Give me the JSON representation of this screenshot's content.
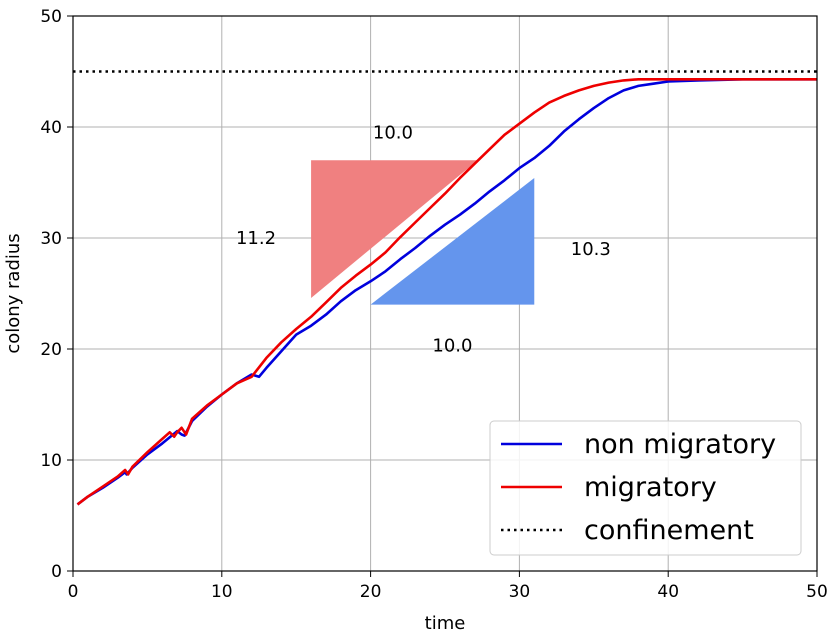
{
  "chart_data": {
    "type": "line",
    "title": "",
    "xlabel": "time",
    "ylabel": "colony radius",
    "xlim": [
      0,
      50
    ],
    "ylim": [
      0,
      50
    ],
    "xticks": [
      "0",
      "10",
      "20",
      "30",
      "40",
      "50"
    ],
    "yticks": [
      "0",
      "10",
      "20",
      "30",
      "40",
      "50"
    ],
    "grid": true,
    "legend_position": "bottom-right",
    "series": [
      {
        "name": "non migratory",
        "color": "#0000dd",
        "x": [
          0.3,
          1,
          2,
          3,
          3.5,
          3.6,
          4,
          5,
          6,
          7,
          7.3,
          7.5,
          8,
          9,
          10,
          11,
          12,
          12.5,
          13,
          14,
          15,
          16,
          17,
          18,
          19,
          20,
          21,
          22,
          23,
          24,
          25,
          26,
          27,
          28,
          29,
          30,
          31,
          32,
          33,
          34,
          35,
          36,
          37,
          38,
          39,
          40,
          42,
          45,
          48,
          50
        ],
        "y": [
          6.0,
          6.7,
          7.5,
          8.4,
          8.9,
          8.7,
          9.3,
          10.5,
          11.5,
          12.6,
          12.3,
          12.2,
          13.5,
          14.8,
          15.9,
          16.9,
          17.7,
          17.5,
          18.3,
          19.8,
          21.3,
          22.1,
          23.1,
          24.3,
          25.3,
          26.1,
          27.0,
          28.1,
          29.1,
          30.2,
          31.2,
          32.1,
          33.1,
          34.2,
          35.2,
          36.3,
          37.2,
          38.3,
          39.6,
          40.7,
          41.7,
          42.6,
          43.3,
          43.7,
          43.9,
          44.1,
          44.2,
          44.3,
          44.3,
          44.3
        ]
      },
      {
        "name": "migratory",
        "color": "#ee0000",
        "x": [
          0.3,
          1,
          2,
          3,
          3.5,
          3.7,
          4,
          5,
          6,
          6.5,
          6.8,
          7,
          7.3,
          7.6,
          8,
          9,
          10,
          11,
          12,
          13,
          14,
          15,
          16,
          17,
          18,
          19,
          20,
          21,
          22,
          23,
          24,
          25,
          26,
          27,
          28,
          29,
          30,
          31,
          32,
          33,
          34,
          35,
          36,
          37,
          38,
          39,
          40,
          42,
          45,
          48,
          50
        ],
        "y": [
          6.0,
          6.7,
          7.6,
          8.5,
          9.1,
          8.7,
          9.4,
          10.7,
          11.9,
          12.5,
          12.1,
          12.5,
          12.9,
          12.3,
          13.7,
          14.9,
          15.9,
          16.9,
          17.5,
          19.2,
          20.6,
          21.8,
          22.9,
          24.2,
          25.5,
          26.6,
          27.6,
          28.7,
          30.1,
          31.4,
          32.7,
          34.0,
          35.4,
          36.7,
          38.0,
          39.3,
          40.3,
          41.3,
          42.2,
          42.8,
          43.3,
          43.7,
          44.0,
          44.2,
          44.3,
          44.3,
          44.3,
          44.3,
          44.3,
          44.3,
          44.3
        ]
      },
      {
        "name": "confinement",
        "color": "#000000",
        "style": "dotted",
        "x": [
          0,
          50
        ],
        "y": [
          45,
          45
        ]
      }
    ],
    "slope_triangles": [
      {
        "color": "#f08080",
        "vertices": [
          [
            16,
            24.6
          ],
          [
            16,
            37
          ],
          [
            27.2,
            37
          ]
        ],
        "labels": [
          {
            "text": "10.0",
            "x": 21.5,
            "y": 39.5,
            "anchor": "middle"
          },
          {
            "text": "11.2",
            "x": 12.3,
            "y": 30.0,
            "anchor": "middle"
          }
        ]
      },
      {
        "color": "#6495ed",
        "vertices": [
          [
            20,
            24
          ],
          [
            31,
            24
          ],
          [
            31,
            35.4
          ]
        ],
        "labels": [
          {
            "text": "10.0",
            "x": 25.5,
            "y": 20.3,
            "anchor": "middle"
          },
          {
            "text": "10.3",
            "x": 34.8,
            "y": 29.0,
            "anchor": "middle"
          }
        ]
      }
    ]
  }
}
